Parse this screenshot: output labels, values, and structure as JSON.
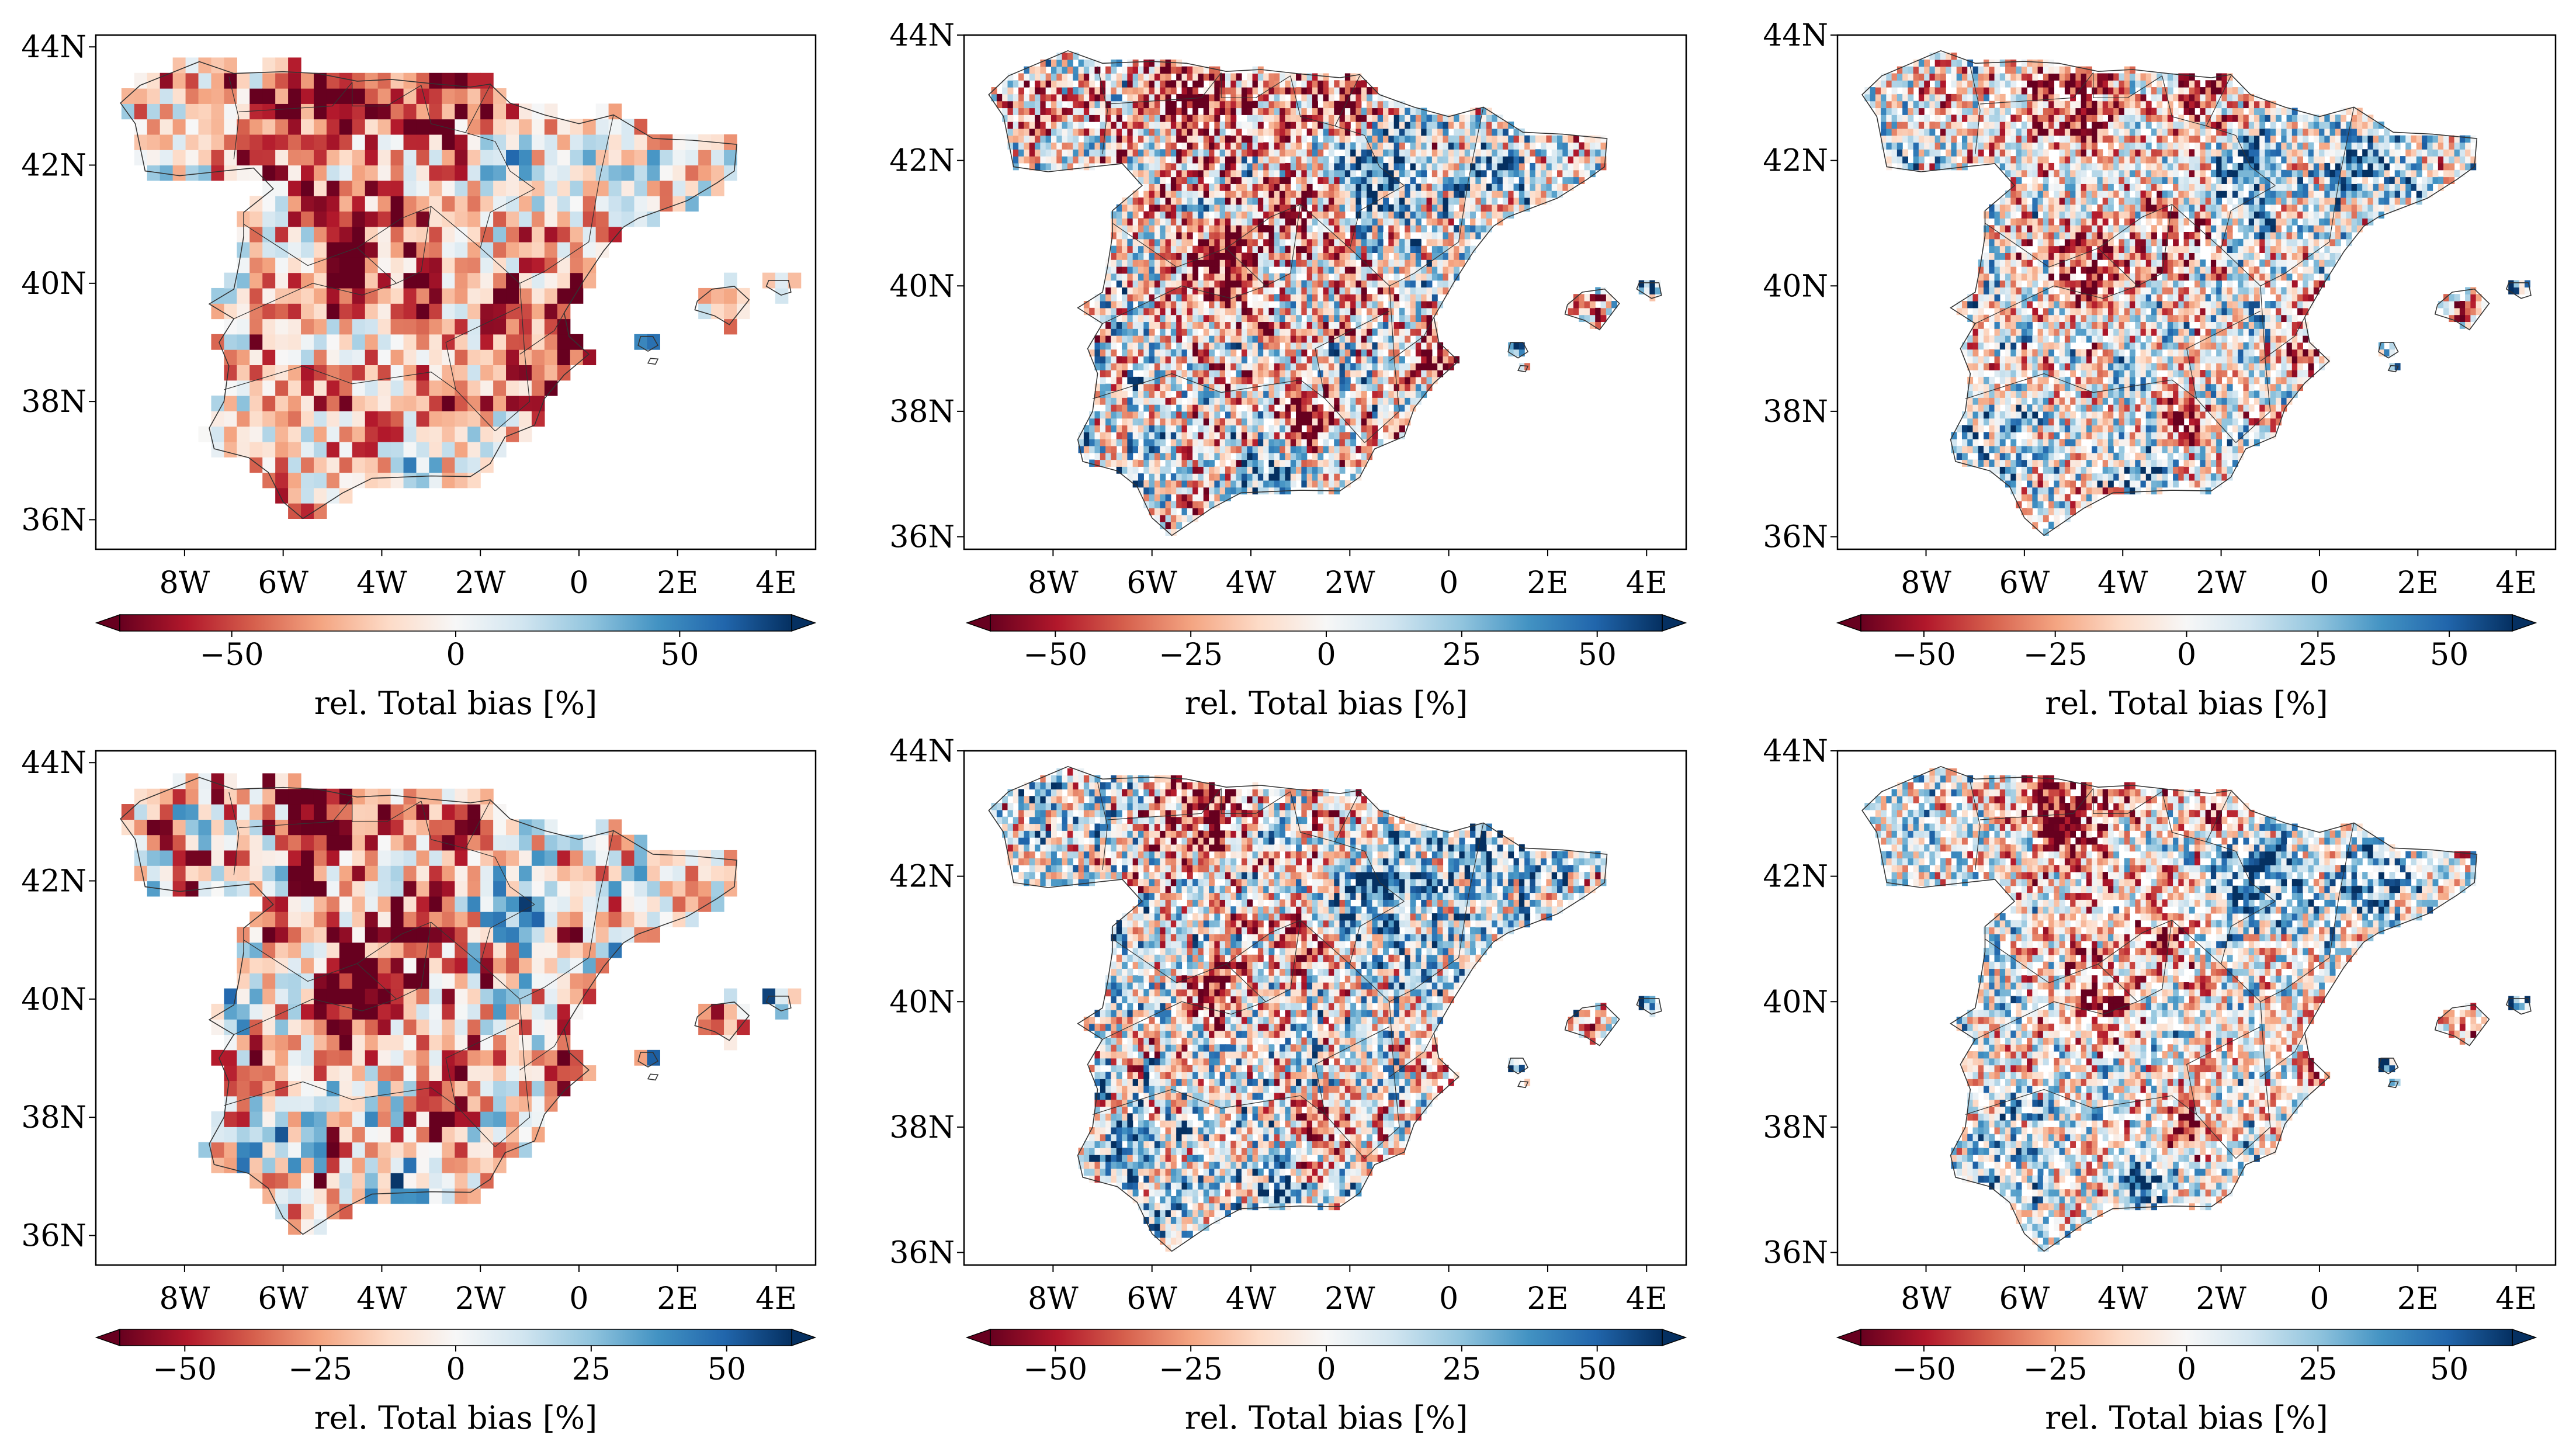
{
  "figure": {
    "colormap": "RdBu",
    "colormap_stops": [
      "#67001f",
      "#b2182b",
      "#d6604d",
      "#f4a582",
      "#fddbc7",
      "#f7f7f7",
      "#d1e5f0",
      "#92c5de",
      "#4393c3",
      "#2166ac",
      "#053061"
    ],
    "axes_frame_color": "#000000",
    "border_line_color": "#333333"
  },
  "chart_data": [
    {
      "type": "heatmap",
      "panel": "top-left",
      "variable": "rel. Total bias [%]",
      "grid_resolution": "coarse",
      "lon_range": [
        -9.8,
        4.8
      ],
      "lat_range": [
        35.5,
        44.2
      ],
      "xticks": [
        -8,
        -6,
        -4,
        -2,
        0,
        2,
        4
      ],
      "xtick_labels": [
        "8W",
        "6W",
        "4W",
        "2W",
        "0",
        "2E",
        "4E"
      ],
      "yticks": [
        36,
        38,
        40,
        42,
        44
      ],
      "ytick_labels": [
        "36N",
        "38N",
        "40N",
        "42N",
        "44N"
      ],
      "colorbar": {
        "title": "rel. Total bias [%]",
        "vmin": -75,
        "vmax": 75,
        "ticks": [
          -50,
          0,
          50
        ],
        "tick_labels": [
          "−50",
          "0",
          "50"
        ],
        "extend": "both"
      }
    },
    {
      "type": "heatmap",
      "panel": "top-center",
      "variable": "rel. Total bias [%]",
      "grid_resolution": "fine",
      "lon_range": [
        -9.8,
        4.8
      ],
      "lat_range": [
        35.8,
        44.0
      ],
      "xticks": [
        -8,
        -6,
        -4,
        -2,
        0,
        2,
        4
      ],
      "xtick_labels": [
        "8W",
        "6W",
        "4W",
        "2W",
        "0",
        "2E",
        "4E"
      ],
      "yticks": [
        36,
        38,
        40,
        42,
        44
      ],
      "ytick_labels": [
        "36N",
        "38N",
        "40N",
        "42N",
        "44N"
      ],
      "colorbar": {
        "title": "rel. Total bias [%]",
        "vmin": -62,
        "vmax": 62,
        "ticks": [
          -50,
          -25,
          0,
          25,
          50
        ],
        "tick_labels": [
          "−50",
          "−25",
          "0",
          "25",
          "50"
        ],
        "extend": "both"
      }
    },
    {
      "type": "heatmap",
      "panel": "top-right",
      "variable": "rel. Total bias [%]",
      "grid_resolution": "fine",
      "lon_range": [
        -9.8,
        4.8
      ],
      "lat_range": [
        35.8,
        44.0
      ],
      "xticks": [
        -8,
        -6,
        -4,
        -2,
        0,
        2,
        4
      ],
      "xtick_labels": [
        "8W",
        "6W",
        "4W",
        "2W",
        "0",
        "2E",
        "4E"
      ],
      "yticks": [
        36,
        38,
        40,
        42,
        44
      ],
      "ytick_labels": [
        "36N",
        "38N",
        "40N",
        "42N",
        "44N"
      ],
      "colorbar": {
        "title": "rel. Total bias [%]",
        "vmin": -62,
        "vmax": 62,
        "ticks": [
          -50,
          -25,
          0,
          25,
          50
        ],
        "tick_labels": [
          "−50",
          "−25",
          "0",
          "25",
          "50"
        ],
        "extend": "both"
      }
    },
    {
      "type": "heatmap",
      "panel": "bottom-left",
      "variable": "rel. Total bias [%]",
      "grid_resolution": "coarse",
      "lon_range": [
        -9.8,
        4.8
      ],
      "lat_range": [
        35.5,
        44.2
      ],
      "xticks": [
        -8,
        -6,
        -4,
        -2,
        0,
        2,
        4
      ],
      "xtick_labels": [
        "8W",
        "6W",
        "4W",
        "2W",
        "0",
        "2E",
        "4E"
      ],
      "yticks": [
        36,
        38,
        40,
        42,
        44
      ],
      "ytick_labels": [
        "36N",
        "38N",
        "40N",
        "42N",
        "44N"
      ],
      "colorbar": {
        "title": "rel. Total bias [%]",
        "vmin": -62,
        "vmax": 62,
        "ticks": [
          -50,
          -25,
          0,
          25,
          50
        ],
        "tick_labels": [
          "−50",
          "−25",
          "0",
          "25",
          "50"
        ],
        "extend": "both"
      }
    },
    {
      "type": "heatmap",
      "panel": "bottom-center",
      "variable": "rel. Total bias [%]",
      "grid_resolution": "fine",
      "lon_range": [
        -9.8,
        4.8
      ],
      "lat_range": [
        35.8,
        44.0
      ],
      "xticks": [
        -8,
        -6,
        -4,
        -2,
        0,
        2,
        4
      ],
      "xtick_labels": [
        "8W",
        "6W",
        "4W",
        "2W",
        "0",
        "2E",
        "4E"
      ],
      "yticks": [
        36,
        38,
        40,
        42,
        44
      ],
      "ytick_labels": [
        "36N",
        "38N",
        "40N",
        "42N",
        "44N"
      ],
      "colorbar": {
        "title": "rel. Total bias [%]",
        "vmin": -62,
        "vmax": 62,
        "ticks": [
          -50,
          -25,
          0,
          25,
          50
        ],
        "tick_labels": [
          "−50",
          "−25",
          "0",
          "25",
          "50"
        ],
        "extend": "both"
      }
    },
    {
      "type": "heatmap",
      "panel": "bottom-right",
      "variable": "rel. Total bias [%]",
      "grid_resolution": "fine",
      "lon_range": [
        -9.8,
        4.8
      ],
      "lat_range": [
        35.8,
        44.0
      ],
      "xticks": [
        -8,
        -6,
        -4,
        -2,
        0,
        2,
        4
      ],
      "xtick_labels": [
        "8W",
        "6W",
        "4W",
        "2W",
        "0",
        "2E",
        "4E"
      ],
      "yticks": [
        36,
        38,
        40,
        42,
        44
      ],
      "ytick_labels": [
        "36N",
        "38N",
        "40N",
        "42N",
        "44N"
      ],
      "colorbar": {
        "title": "rel. Total bias [%]",
        "vmin": -62,
        "vmax": 62,
        "ticks": [
          -50,
          -25,
          0,
          25,
          50
        ],
        "tick_labels": [
          "−50",
          "−25",
          "0",
          "25",
          "50"
        ],
        "extend": "both"
      }
    }
  ]
}
